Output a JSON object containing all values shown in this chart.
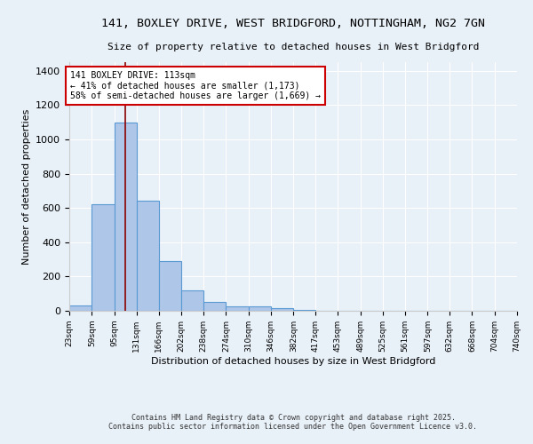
{
  "title1": "141, BOXLEY DRIVE, WEST BRIDGFORD, NOTTINGHAM, NG2 7GN",
  "title2": "Size of property relative to detached houses in West Bridgford",
  "xlabel": "Distribution of detached houses by size in West Bridgford",
  "ylabel": "Number of detached properties",
  "bin_edges": [
    23,
    59,
    95,
    131,
    166,
    202,
    238,
    274,
    310,
    346,
    382,
    417,
    453,
    489,
    525,
    561,
    597,
    632,
    668,
    704,
    740
  ],
  "bar_heights": [
    30,
    620,
    1100,
    640,
    290,
    120,
    50,
    25,
    25,
    15,
    5,
    2,
    1,
    1,
    0,
    0,
    0,
    0,
    0,
    0
  ],
  "bar_color": "#aec6e8",
  "bar_edge_color": "#5a9ad4",
  "property_size": 113,
  "red_line_color": "#8b0000",
  "annotation_title": "141 BOXLEY DRIVE: 113sqm",
  "annotation_line1": "← 41% of detached houses are smaller (1,173)",
  "annotation_line2": "58% of semi-detached houses are larger (1,669) →",
  "annotation_box_color": "#ffffff",
  "annotation_box_edge": "#cc0000",
  "ylim": [
    0,
    1450
  ],
  "yticks": [
    0,
    200,
    400,
    600,
    800,
    1000,
    1200,
    1400
  ],
  "bg_color": "#e8f0f8",
  "grid_color": "#ffffff",
  "footer1": "Contains HM Land Registry data © Crown copyright and database right 2025.",
  "footer2": "Contains public sector information licensed under the Open Government Licence v3.0."
}
